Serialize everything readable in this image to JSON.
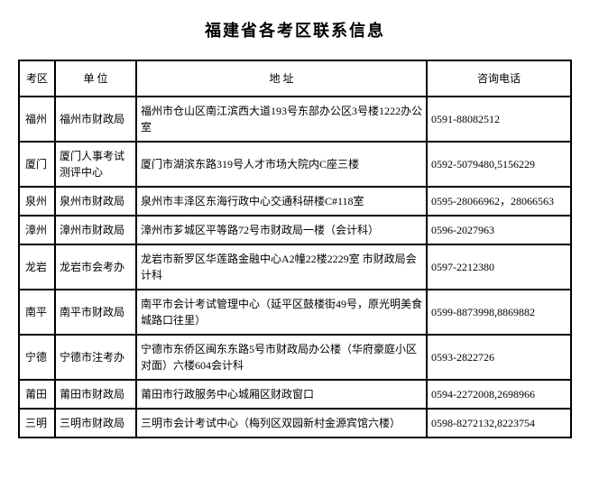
{
  "title": "福建省各考区联系信息",
  "table": {
    "headers": {
      "region": "考区",
      "unit": "单  位",
      "address": "地   址",
      "phone": "咨询电话"
    },
    "rows": [
      {
        "region": "福州",
        "unit": "福州市财政局",
        "address": "福州市仓山区南江滨西大道193号东部办公区3号楼1222办公室",
        "phone": "0591-88082512"
      },
      {
        "region": "厦门",
        "unit": "厦门人事考试测评中心",
        "address": "厦门市湖滨东路319号人才市场大院内C座三楼",
        "phone": "0592-5079480,5156229"
      },
      {
        "region": "泉州",
        "unit": "泉州市财政局",
        "address": "泉州市丰泽区东海行政中心交通科研楼C#118室",
        "phone": "0595-28066962，28066563"
      },
      {
        "region": "漳州",
        "unit": "漳州市财政局",
        "address": "漳州市芗城区平等路72号市财政局一楼（会计科）",
        "phone": "0596-2027963"
      },
      {
        "region": "龙岩",
        "unit": "龙岩市会考办",
        "address": "龙岩市新罗区华莲路金融中心A2幢22楼2229室 市财政局会计科",
        "phone": "0597-2212380"
      },
      {
        "region": "南平",
        "unit": "南平市财政局",
        "address": "南平市会计考试管理中心（延平区鼓楼街49号，原光明美食城路口往里）",
        "phone": "0599-8873998,8869882"
      },
      {
        "region": "宁德",
        "unit": "宁德市注考办",
        "address": "宁德市东侨区闽东东路5号市财政局办公楼（华府豪庭小区对面）六楼604会计科",
        "phone": "0593-2822726"
      },
      {
        "region": "莆田",
        "unit": "莆田市财政局",
        "address": "莆田市行政服务中心城厢区财政窗口",
        "phone": "0594-2272008,2698966"
      },
      {
        "region": "三明",
        "unit": "三明市财政局",
        "address": "三明市会计考试中心（梅列区双园新村金源宾馆六楼）",
        "phone": "0598-8272132,8223754"
      }
    ]
  }
}
